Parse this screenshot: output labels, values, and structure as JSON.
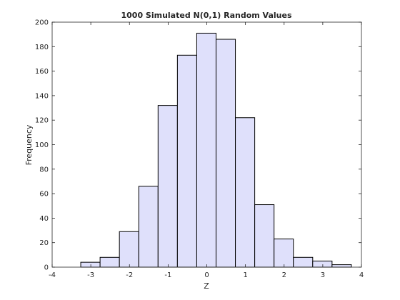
{
  "chart_data": {
    "type": "bar",
    "title": "1000 Simulated N(0,1) Random Values",
    "xlabel": "Z",
    "ylabel": "Frequency",
    "xlim": [
      -4,
      4
    ],
    "ylim": [
      0,
      200
    ],
    "xticks": [
      -4,
      -3,
      -2,
      -1,
      0,
      1,
      2,
      3,
      4
    ],
    "yticks": [
      0,
      20,
      40,
      60,
      80,
      100,
      120,
      140,
      160,
      180,
      200
    ],
    "bins": [
      {
        "x0": -3.26,
        "x1": -2.76,
        "value": 4
      },
      {
        "x0": -2.76,
        "x1": -2.26,
        "value": 8
      },
      {
        "x0": -2.26,
        "x1": -1.76,
        "value": 29
      },
      {
        "x0": -1.76,
        "x1": -1.26,
        "value": 66
      },
      {
        "x0": -1.26,
        "x1": -0.76,
        "value": 132
      },
      {
        "x0": -0.76,
        "x1": -0.26,
        "value": 173
      },
      {
        "x0": -0.26,
        "x1": 0.24,
        "value": 191
      },
      {
        "x0": 0.24,
        "x1": 0.74,
        "value": 186
      },
      {
        "x0": 0.74,
        "x1": 1.24,
        "value": 122
      },
      {
        "x0": 1.24,
        "x1": 1.74,
        "value": 51
      },
      {
        "x0": 1.74,
        "x1": 2.24,
        "value": 23
      },
      {
        "x0": 2.24,
        "x1": 2.74,
        "value": 8
      },
      {
        "x0": 2.74,
        "x1": 3.24,
        "value": 5
      },
      {
        "x0": 3.24,
        "x1": 3.74,
        "value": 2
      }
    ],
    "colors": {
      "bar_fill": "#dfe0fb",
      "bar_edge": "#000000",
      "axis": "#262626"
    },
    "grid": false,
    "legend": "none"
  }
}
